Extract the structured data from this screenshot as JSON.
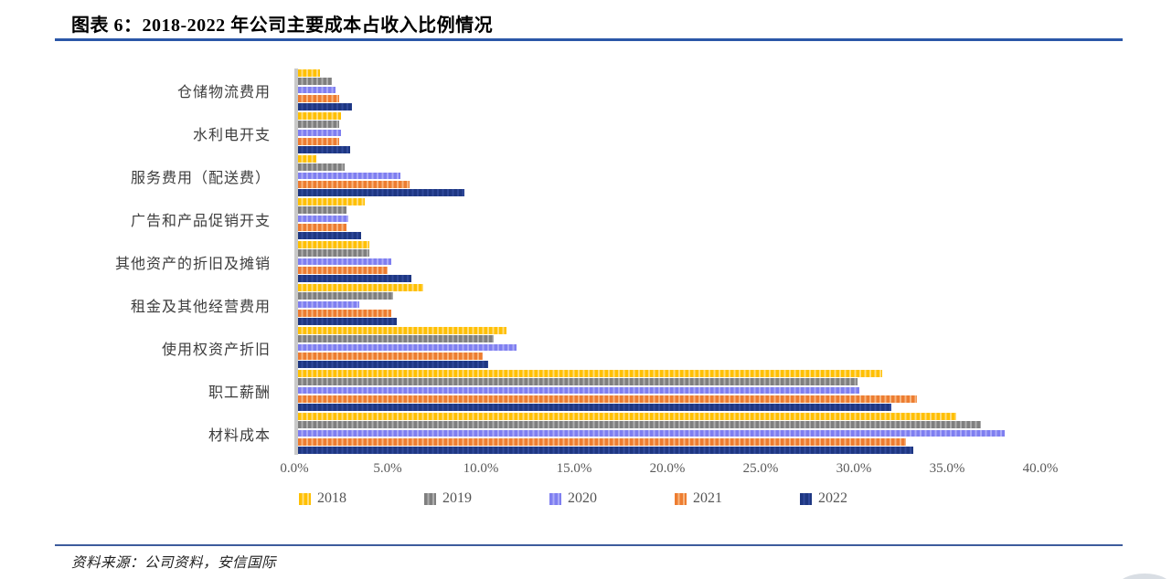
{
  "title": "图表 6：2018-2022 年公司主要成本占收入比例情况",
  "footer": {
    "source": "资料来源：公司资料，安信国际"
  },
  "colors": {
    "title_rule": "#2B57A8",
    "footer_rule": "#3D5C9C",
    "axis_line": "#C9C9C9"
  },
  "chart_data": {
    "type": "bar",
    "orientation": "horizontal",
    "title": "2018-2022 年公司主要成本占收入比例情况",
    "categories": [
      "仓储物流费用",
      "水利电开支",
      "服务费用（配送费）",
      "广告和产品促销开支",
      "其他资产的折旧及摊销",
      "租金及其他经营费用",
      "使用权资产折旧",
      "职工薪酬",
      "材料成本"
    ],
    "series": [
      {
        "name": "2018",
        "color": "#FFC000",
        "stripe_color": "#FFDD7E",
        "values": [
          1.2,
          2.3,
          1.0,
          3.6,
          3.8,
          6.7,
          11.2,
          31.3,
          35.3
        ]
      },
      {
        "name": "2019",
        "color": "#7F7F7F",
        "stripe_color": "#ADADAD",
        "values": [
          1.8,
          2.2,
          2.5,
          2.6,
          3.8,
          5.1,
          10.5,
          30.0,
          36.6
        ]
      },
      {
        "name": "2020",
        "color": "#7F7FF0",
        "stripe_color": "#ABABF7",
        "values": [
          2.0,
          2.3,
          5.5,
          2.7,
          5.0,
          3.3,
          11.7,
          30.1,
          37.9
        ]
      },
      {
        "name": "2021",
        "color": "#ED7D31",
        "stripe_color": "#F7B57F",
        "values": [
          2.2,
          2.2,
          6.0,
          2.6,
          4.8,
          5.0,
          9.9,
          33.2,
          32.6
        ]
      },
      {
        "name": "2022",
        "color": "#1E3782",
        "stripe_color": "#30499B",
        "values": [
          2.9,
          2.8,
          8.9,
          3.4,
          6.1,
          5.3,
          10.2,
          31.8,
          33.0
        ]
      }
    ],
    "x_ticks": [
      "0.0%",
      "5.0%",
      "10.0%",
      "15.0%",
      "20.0%",
      "25.0%",
      "30.0%",
      "35.0%",
      "40.0%"
    ],
    "xlim": [
      0,
      40
    ],
    "grid": false,
    "legend_position": "bottom"
  }
}
